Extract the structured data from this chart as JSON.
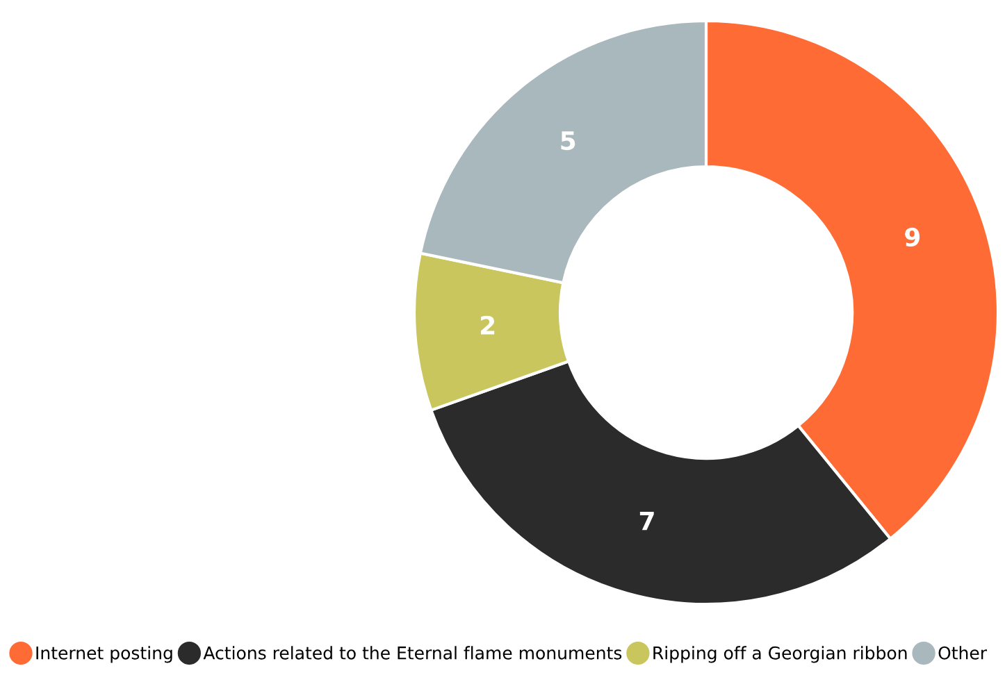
{
  "chart_data": {
    "type": "donut",
    "categories": [
      "Internet posting",
      "Actions related to the Eternal flame monuments",
      "Ripping off a Georgian ribbon",
      "Other"
    ],
    "values": [
      9,
      7,
      2,
      5
    ],
    "colors": [
      "#ff6b35",
      "#2b2b2b",
      "#c9c65e",
      "#a9b8bd"
    ],
    "data_labels": true,
    "legend": "bottom"
  }
}
